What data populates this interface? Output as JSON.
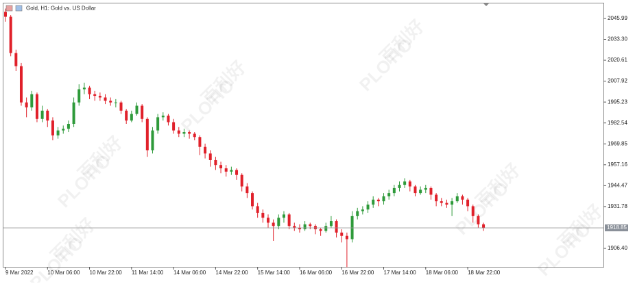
{
  "chart_data": {
    "type": "candlestick",
    "title": "Gold, H1:  Gold vs. US Dollar",
    "watermark": [
      "百利好",
      "PLOTIO"
    ],
    "categories": [
      "9 Mar 2022",
      null,
      null,
      null,
      null,
      null,
      null,
      null,
      "10 Mar 06:00",
      null,
      null,
      null,
      null,
      null,
      null,
      null,
      "10 Mar 22:00",
      null,
      null,
      null,
      null,
      null,
      null,
      null,
      "11 Mar 14:00",
      null,
      null,
      null,
      null,
      null,
      null,
      null,
      "14 Mar 06:00",
      null,
      null,
      null,
      null,
      null,
      null,
      null,
      "14 Mar 22:00",
      null,
      null,
      null,
      null,
      null,
      null,
      null,
      "15 Mar 14:00",
      null,
      null,
      null,
      null,
      null,
      null,
      null,
      "16 Mar 06:00",
      null,
      null,
      null,
      null,
      null,
      null,
      null,
      "16 Mar 22:00",
      null,
      null,
      null,
      null,
      null,
      null,
      null,
      "17 Mar 14:00",
      null,
      null,
      null,
      null,
      null,
      null,
      null,
      "18 Mar 06:00",
      null,
      null,
      null,
      null,
      null,
      null,
      null,
      "18 Mar 22:00",
      null,
      null,
      null
    ],
    "ohlc": [
      [
        2050,
        2052,
        2044,
        2047
      ],
      [
        2047,
        2048,
        2023,
        2025
      ],
      [
        2025,
        2027,
        2014,
        2017
      ],
      [
        2017,
        2019,
        1993,
        1995
      ],
      [
        1995,
        1998,
        1986,
        1992
      ],
      [
        1992,
        2002,
        1990,
        2000
      ],
      [
        2000,
        2001,
        1983,
        1985
      ],
      [
        1985,
        1993,
        1983,
        1990
      ],
      [
        1990,
        1991,
        1980,
        1984
      ],
      [
        1984,
        1986,
        1972,
        1975
      ],
      [
        1975,
        1980,
        1973,
        1978
      ],
      [
        1978,
        1981,
        1976,
        1979
      ],
      [
        1979,
        1984,
        1977,
        1982
      ],
      [
        1982,
        1998,
        1980,
        1995
      ],
      [
        1995,
        2006,
        1993,
        2003
      ],
      [
        2003,
        2007,
        2000,
        2004
      ],
      [
        2004,
        2005,
        1997,
        2000
      ],
      [
        2000,
        2002,
        1996,
        1999
      ],
      [
        1999,
        2001,
        1996,
        1998
      ],
      [
        1998,
        2000,
        1994,
        1996
      ],
      [
        1996,
        1998,
        1993,
        1995
      ],
      [
        1995,
        1997,
        1992,
        1995
      ],
      [
        1995,
        1996,
        1988,
        1990
      ],
      [
        1990,
        1991,
        1982,
        1984
      ],
      [
        1984,
        1990,
        1983,
        1988
      ],
      [
        1988,
        1995,
        1987,
        1993
      ],
      [
        1993,
        1994,
        1983,
        1985
      ],
      [
        1985,
        1986,
        1962,
        1966
      ],
      [
        1966,
        1980,
        1964,
        1978
      ],
      [
        1978,
        1988,
        1976,
        1986
      ],
      [
        1986,
        1989,
        1984,
        1987
      ],
      [
        1987,
        1988,
        1981,
        1983
      ],
      [
        1983,
        1985,
        1976,
        1978
      ],
      [
        1978,
        1980,
        1974,
        1976
      ],
      [
        1976,
        1979,
        1974,
        1977
      ],
      [
        1977,
        1978,
        1973,
        1976
      ],
      [
        1976,
        1977,
        1972,
        1974
      ],
      [
        1974,
        1975,
        1963,
        1968
      ],
      [
        1968,
        1970,
        1961,
        1964
      ],
      [
        1964,
        1966,
        1956,
        1960
      ],
      [
        1960,
        1962,
        1954,
        1957
      ],
      [
        1957,
        1959,
        1952,
        1955
      ],
      [
        1955,
        1957,
        1950,
        1953
      ],
      [
        1953,
        1956,
        1951,
        1954
      ],
      [
        1954,
        1955,
        1948,
        1951
      ],
      [
        1951,
        1952,
        1941,
        1944
      ],
      [
        1944,
        1946,
        1937,
        1940
      ],
      [
        1940,
        1941,
        1930,
        1932
      ],
      [
        1932,
        1934,
        1925,
        1928
      ],
      [
        1928,
        1930,
        1922,
        1925
      ],
      [
        1925,
        1927,
        1919,
        1922
      ],
      [
        1922,
        1924,
        1911,
        1920
      ],
      [
        1920,
        1927,
        1918,
        1925
      ],
      [
        1925,
        1929,
        1922,
        1927
      ],
      [
        1927,
        1928,
        1918,
        1920
      ],
      [
        1920,
        1922,
        1917,
        1919
      ],
      [
        1919,
        1921,
        1916,
        1918
      ],
      [
        1918,
        1923,
        1917,
        1921
      ],
      [
        1921,
        1922,
        1918,
        1920
      ],
      [
        1920,
        1921,
        1915,
        1918
      ],
      [
        1918,
        1919,
        1914,
        1917
      ],
      [
        1917,
        1922,
        1916,
        1920
      ],
      [
        1920,
        1926,
        1919,
        1923
      ],
      [
        1923,
        1924,
        1913,
        1916
      ],
      [
        1916,
        1918,
        1910,
        1914
      ],
      [
        1914,
        1916,
        1895,
        1912
      ],
      [
        1912,
        1929,
        1910,
        1926
      ],
      [
        1926,
        1931,
        1924,
        1929
      ],
      [
        1929,
        1932,
        1927,
        1930
      ],
      [
        1930,
        1935,
        1928,
        1933
      ],
      [
        1933,
        1938,
        1931,
        1936
      ],
      [
        1936,
        1937,
        1932,
        1935
      ],
      [
        1935,
        1940,
        1933,
        1938
      ],
      [
        1938,
        1942,
        1936,
        1940
      ],
      [
        1940,
        1945,
        1938,
        1943
      ],
      [
        1943,
        1947,
        1941,
        1945
      ],
      [
        1945,
        1949,
        1943,
        1947
      ],
      [
        1947,
        1948,
        1941,
        1944
      ],
      [
        1944,
        1945,
        1938,
        1940
      ],
      [
        1940,
        1944,
        1939,
        1942
      ],
      [
        1942,
        1945,
        1940,
        1943
      ],
      [
        1943,
        1944,
        1936,
        1939
      ],
      [
        1939,
        1940,
        1932,
        1935
      ],
      [
        1935,
        1937,
        1932,
        1934
      ],
      [
        1934,
        1936,
        1931,
        1933
      ],
      [
        1933,
        1937,
        1926,
        1935
      ],
      [
        1935,
        1940,
        1934,
        1938
      ],
      [
        1938,
        1939,
        1933,
        1936
      ],
      [
        1936,
        1937,
        1929,
        1932
      ],
      [
        1932,
        1933,
        1922,
        1926
      ],
      [
        1926,
        1927,
        1919,
        1921
      ],
      [
        1921,
        1922,
        1917,
        1918.85
      ]
    ],
    "up_color": "#2e9a3a",
    "down_color": "#e0202a",
    "last_price": 1918.85,
    "ylim": [
      1895.2,
      2055.1
    ],
    "yticks": [
      2045.99,
      {
        "value": 2033.3,
        "label": "2033.30"
      },
      2020.61,
      2007.92,
      1995.23,
      1982.54,
      1969.85,
      1957.16,
      1944.47,
      1931.78,
      {
        "value": 1906.4,
        "label": "1906.40"
      }
    ],
    "grid": false
  }
}
